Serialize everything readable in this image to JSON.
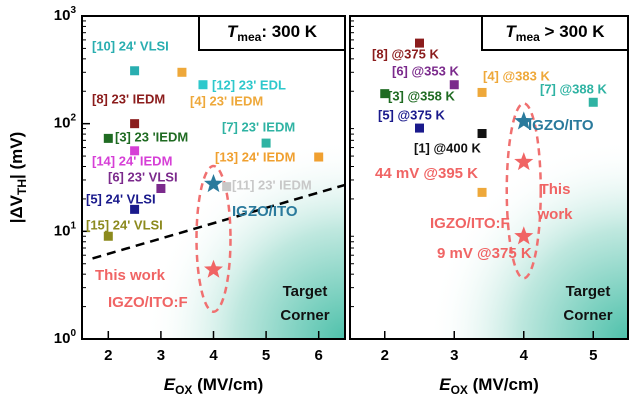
{
  "chart_data": [
    {
      "type": "scatter",
      "header": {
        "main": "T",
        "sub": "mea",
        "rest": ": 300 K"
      },
      "y_label": {
        "main": "|ΔV",
        "sub": "TH",
        "rest": "| (mV)"
      },
      "x_label": {
        "main": "E",
        "sub": "OX",
        "rest": " (MV/cm)"
      },
      "xlim": [
        1.5,
        6.5
      ],
      "xticks": [
        2,
        3,
        4,
        5,
        6
      ],
      "ylim": [
        1,
        1000
      ],
      "log_y": true,
      "yticks": [
        {
          "value": 1,
          "label": "10",
          "exponent": "0"
        },
        {
          "value": 10,
          "label": "10",
          "exponent": "1"
        },
        {
          "value": 100,
          "label": "10",
          "exponent": "2"
        },
        {
          "value": 1000,
          "label": "10",
          "exponent": "3"
        }
      ],
      "series": [
        {
          "name": "[10] 24' VLSI",
          "color": "#29aeb0",
          "marker": "square",
          "x": [
            2.5
          ],
          "values": [
            310
          ]
        },
        {
          "name": "[4] 23' IEDM",
          "color": "#eea83a",
          "marker": "square",
          "x": [
            3.4
          ],
          "values": [
            300
          ]
        },
        {
          "name": "[12] 23' EDL",
          "color": "#2ec8cc",
          "marker": "square",
          "x": [
            3.8
          ],
          "values": [
            230
          ]
        },
        {
          "name": "[8] 23' IEDM",
          "color": "#8b1c1c",
          "marker": "square",
          "x": [
            2.5
          ],
          "values": [
            100
          ]
        },
        {
          "name": "[3] 23 'IEDM",
          "color": "#1f6b22",
          "marker": "square",
          "x": [
            2
          ],
          "values": [
            73
          ]
        },
        {
          "name": "[7] 23' IEDM",
          "color": "#2fb3a3",
          "marker": "square",
          "x": [
            5
          ],
          "values": [
            66
          ]
        },
        {
          "name": "[14] 24' IEDM",
          "color": "#d63fd6",
          "marker": "square",
          "x": [
            2.5
          ],
          "values": [
            56
          ]
        },
        {
          "name": "[13] 24' IEDM",
          "color": "#f0a030",
          "marker": "square",
          "x": [
            6
          ],
          "values": [
            49
          ]
        },
        {
          "name": "[6] 23' VLSI",
          "color": "#7b2a8c",
          "marker": "square",
          "x": [
            3
          ],
          "values": [
            25
          ]
        },
        {
          "name": "[11] 23' IEDM",
          "color": "#c8c8c8",
          "marker": "square",
          "x": [
            4.25
          ],
          "values": [
            26
          ]
        },
        {
          "name": "[5] 24' VLSI",
          "color": "#1a1a8c",
          "marker": "square",
          "x": [
            2.5
          ],
          "values": [
            16
          ]
        },
        {
          "name": "[15] 24' VLSI",
          "color": "#8c8a1e",
          "marker": "square",
          "x": [
            2
          ],
          "values": [
            9
          ]
        },
        {
          "name": "IGZO/ITO",
          "color": "#2a7a9c",
          "marker": "star",
          "x": [
            4
          ],
          "values": [
            27.5
          ]
        },
        {
          "name": "This work",
          "color": "#f06464",
          "marker": "star",
          "x": [
            4
          ],
          "values": [
            4.4
          ]
        }
      ],
      "trend_line": {
        "x": [
          1.7,
          6.5
        ],
        "values": [
          5.6,
          27
        ]
      },
      "annotations": {
        "material": "IGZO/ITO:F",
        "target": [
          "Target",
          "Corner"
        ]
      }
    },
    {
      "type": "scatter",
      "header": {
        "main": "T",
        "sub": "mea",
        "rest": " > 300 K"
      },
      "x_label": {
        "main": "E",
        "sub": "OX",
        "rest": " (MV/cm)"
      },
      "xlim": [
        1.5,
        5.5
      ],
      "xticks": [
        2,
        3,
        4,
        5
      ],
      "ylim": [
        1,
        1000
      ],
      "log_y": true,
      "series": [
        {
          "name": "[8] @375 K",
          "color": "#8b1c1c",
          "marker": "square",
          "x": [
            2.5
          ],
          "values": [
            560
          ]
        },
        {
          "name": "[6] @353 K",
          "color": "#7b2a8c",
          "marker": "square",
          "x": [
            3
          ],
          "values": [
            230
          ]
        },
        {
          "name": "[3] @358 K",
          "color": "#1f6b22",
          "marker": "square",
          "x": [
            2
          ],
          "values": [
            190
          ]
        },
        {
          "name": "[4] @383 K",
          "color": "#eea83a",
          "marker": "square",
          "x": [
            3.4
          ],
          "values": [
            195
          ]
        },
        {
          "name": "[7] @388 K",
          "color": "#2fb3a3",
          "marker": "square",
          "x": [
            5
          ],
          "values": [
            158
          ]
        },
        {
          "name": "[5] @375 K",
          "color": "#1a1a8c",
          "marker": "square",
          "x": [
            2.5
          ],
          "values": [
            91
          ]
        },
        {
          "name": "[1] @400 K",
          "color": "#111111",
          "marker": "square",
          "x": [
            3.4
          ],
          "values": [
            81
          ]
        },
        {
          "color": "#eea83a",
          "marker": "square",
          "x": [
            3.4
          ],
          "values": [
            23
          ]
        },
        {
          "name": "IGZO/ITO",
          "color": "#2a7a9c",
          "marker": "star",
          "x": [
            4
          ],
          "values": [
            105
          ]
        },
        {
          "name": "44 mV @395 K",
          "color": "#f06464",
          "marker": "star",
          "x": [
            4
          ],
          "values": [
            44
          ]
        },
        {
          "name": "9 mV @375 K",
          "color": "#f06464",
          "marker": "star",
          "x": [
            4
          ],
          "values": [
            9
          ]
        }
      ],
      "annotations": {
        "work": [
          "This",
          "work"
        ],
        "material": "IGZO/ITO:F",
        "target": [
          "Target",
          "Corner"
        ]
      }
    }
  ]
}
